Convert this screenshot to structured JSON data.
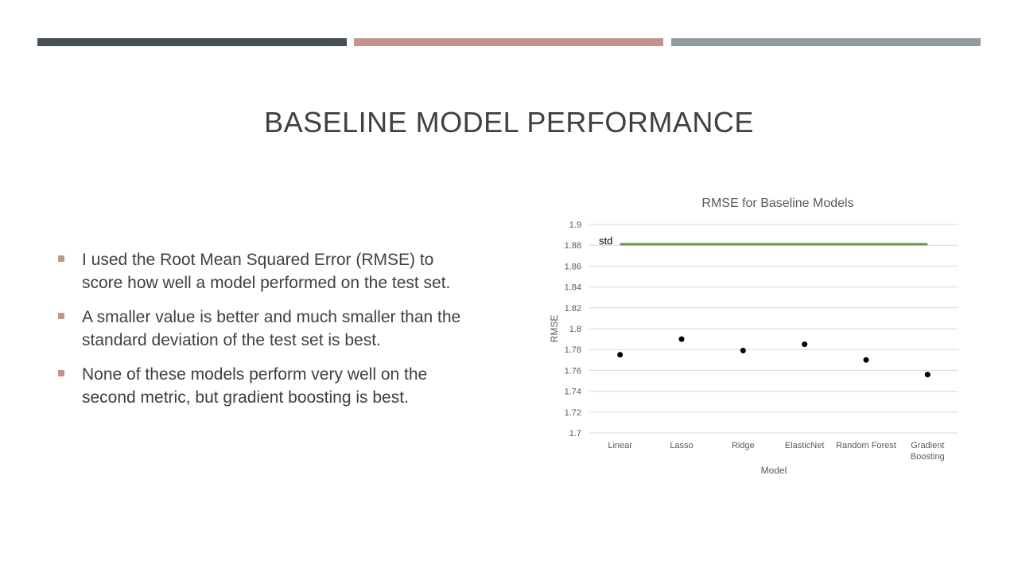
{
  "colors": {
    "bar1": "#464f53",
    "bar2": "#c4938e",
    "bar3": "#939ba2",
    "bullet": "#c4938e",
    "std_line": "#6f8f4a",
    "points": "#000000",
    "grid": "#d9d9d9"
  },
  "slide": {
    "title": "BASELINE MODEL PERFORMANCE",
    "bullets": [
      {
        "text": "I used the Root Mean Squared Error (RMSE) to score how well a model performed on the test set."
      },
      {
        "text": "A smaller value is better and much smaller than the standard deviation of the test set is best."
      },
      {
        "text": "None of these models perform very well on the second metric, but gradient boosting is best."
      }
    ]
  },
  "chart_data": {
    "type": "scatter",
    "title": "RMSE for Baseline Models",
    "xlabel": "Model",
    "ylabel": "RMSE",
    "categories": [
      "Linear",
      "Lasso",
      "Ridge",
      "ElasticNet",
      "Random Forest",
      "Gradient Boosting"
    ],
    "category_labels": [
      [
        "Linear"
      ],
      [
        "Lasso"
      ],
      [
        "Ridge"
      ],
      [
        "ElasticNet"
      ],
      [
        "Random Forest"
      ],
      [
        "Gradient",
        "Boosting"
      ]
    ],
    "series": [
      {
        "values": [
          1.775,
          1.79,
          1.779,
          1.785,
          1.77,
          1.756
        ]
      }
    ],
    "reference_line": {
      "label": "std",
      "value": 1.881
    },
    "ylim": [
      1.7,
      1.9
    ],
    "yticks": [
      1.7,
      1.72,
      1.74,
      1.76,
      1.78,
      1.8,
      1.82,
      1.84,
      1.86,
      1.88,
      1.9
    ],
    "ytick_labels": [
      "1.7",
      "1.72",
      "1.74",
      "1.76",
      "1.78",
      "1.8",
      "1.82",
      "1.84",
      "1.86",
      "1.88",
      "1.9"
    ],
    "grid": true,
    "legend": "none"
  }
}
